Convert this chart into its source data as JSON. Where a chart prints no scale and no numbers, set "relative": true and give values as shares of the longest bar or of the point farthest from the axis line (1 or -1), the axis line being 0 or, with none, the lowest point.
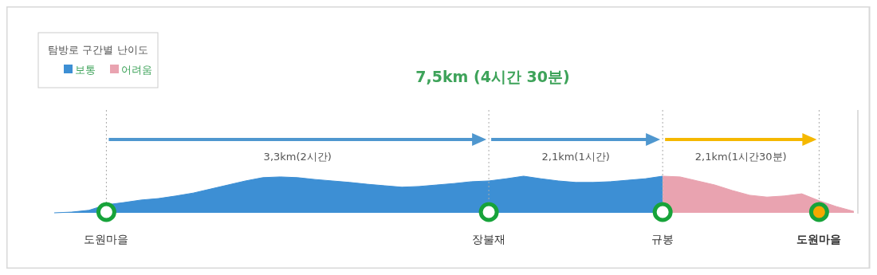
{
  "chart_data": {
    "type": "area",
    "title": "7,5km (4시간 30분)",
    "legend_title": "탐방로 구간별 난이도",
    "legend": "top left",
    "relative": true,
    "grid": "x",
    "categories": [
      null,
      null,
      null,
      "도원마을",
      null,
      null,
      null,
      null,
      null,
      null,
      null,
      null,
      null,
      null,
      null,
      null,
      null,
      null,
      null,
      null,
      null,
      null,
      null,
      null,
      null,
      "장불재",
      null,
      null,
      null,
      null,
      null,
      null,
      null,
      null,
      null,
      "규봉",
      null,
      null,
      null,
      null,
      null,
      null,
      null,
      null,
      "도원마을",
      null,
      null
    ],
    "series": [
      {
        "name": "보통",
        "color": "#3d8fd4",
        "values": [
          0,
          0.02,
          0.07,
          0.22,
          0.28,
          0.35,
          0.39,
          0.46,
          0.54,
          0.65,
          0.76,
          0.87,
          0.96,
          0.98,
          0.96,
          0.91,
          0.87,
          0.83,
          0.78,
          0.74,
          0.7,
          0.72,
          0.76,
          0.8,
          0.85,
          0.87,
          0.93,
          1,
          0.93,
          0.87,
          0.83,
          0.83,
          0.85,
          0.89,
          0.93,
          1,
          null,
          null,
          null,
          null,
          null,
          null,
          null,
          null,
          null,
          null,
          null
        ]
      },
      {
        "name": "어려움",
        "color": "#e9a3b0",
        "values": [
          null,
          null,
          null,
          null,
          null,
          null,
          null,
          null,
          null,
          null,
          null,
          null,
          null,
          null,
          null,
          null,
          null,
          null,
          null,
          null,
          null,
          null,
          null,
          null,
          null,
          null,
          null,
          null,
          null,
          null,
          null,
          null,
          null,
          null,
          null,
          1,
          0.98,
          0.87,
          0.76,
          0.61,
          0.48,
          0.43,
          0.46,
          0.52,
          0.33,
          0.17,
          0.04
        ]
      }
    ],
    "annotations": [
      "3,3km(2시간)",
      "2,1km(1시간)",
      "2,1km(1시간30분)"
    ]
  }
}
